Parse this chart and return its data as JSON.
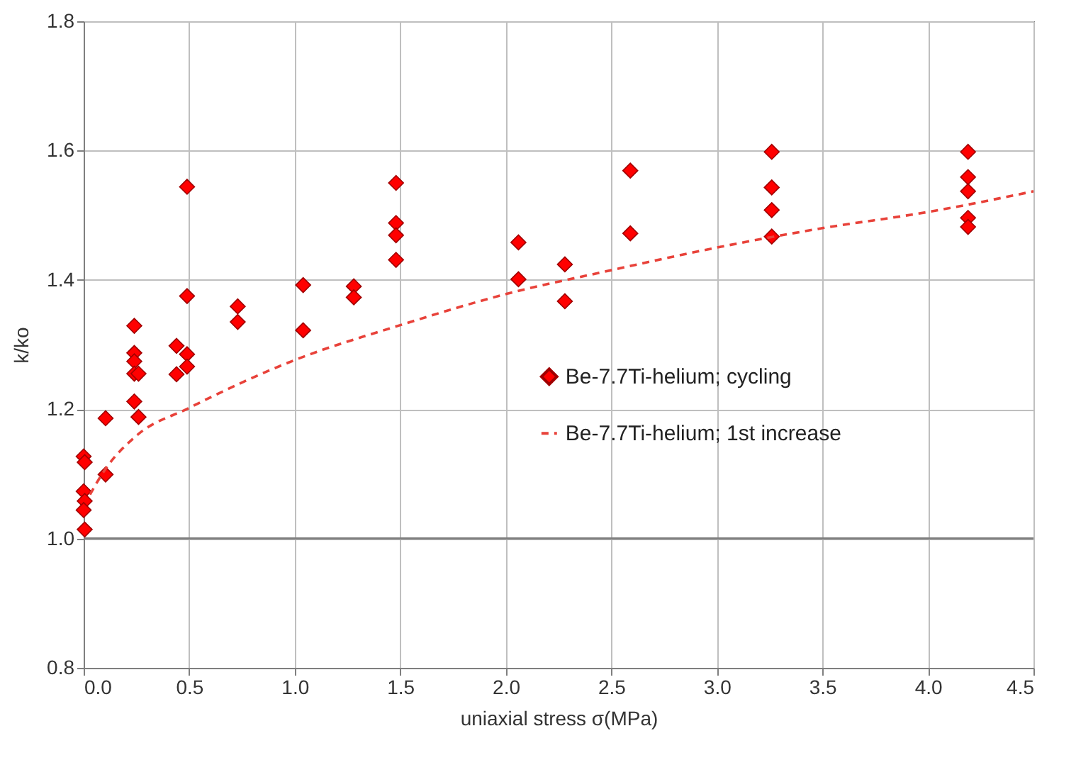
{
  "chart_data": {
    "type": "scatter",
    "xlabel": "uniaxial stress σ(MPa)",
    "ylabel": "k/ko",
    "xlim": [
      0,
      4.5
    ],
    "ylim": [
      0.8,
      1.8
    ],
    "xticks": [
      {
        "value": 0,
        "label": "0.0"
      },
      0.5,
      {
        "value": 1,
        "label": "1.0"
      },
      1.5,
      {
        "value": 2,
        "label": "2.0"
      },
      2.5,
      {
        "value": 3,
        "label": "3.0"
      },
      3.5,
      {
        "value": 4,
        "label": "4.0"
      },
      4.5
    ],
    "yticks": [
      0.8,
      {
        "value": 1,
        "label": "1.0"
      },
      1.2,
      1.4,
      1.6,
      1.8
    ],
    "grid": true,
    "legend": "right",
    "ref_lines": [
      {
        "axis": "y",
        "value": 1,
        "color": "#7f7f7f"
      }
    ],
    "series": [
      {
        "name": "Be-7.7Ti-helium; cycling",
        "marker": "diamond",
        "color": "#ff0000",
        "x": [
          0,
          0.005,
          0,
          0.005,
          0,
          0.005,
          0.104,
          0.104,
          0.24,
          0.24,
          0.24,
          0.24,
          0.24,
          0.26,
          0.26,
          0.44,
          0.44,
          0.49,
          0.49,
          0.49,
          0.49,
          0.73,
          0.73,
          1.04,
          1.04,
          1.28,
          1.28,
          1.48,
          1.48,
          1.48,
          1.48,
          2.06,
          2.06,
          2.28,
          2.28,
          2.59,
          2.59,
          3.26,
          3.26,
          3.26,
          3.26,
          4.19,
          4.19,
          4.19,
          4.19,
          4.19
        ],
        "values": [
          1.127,
          1.118,
          1.073,
          1.058,
          1.044,
          1.014,
          1.186,
          1.099,
          1.329,
          1.287,
          1.274,
          1.255,
          1.212,
          1.188,
          1.255,
          1.298,
          1.254,
          1.544,
          1.375,
          1.285,
          1.266,
          1.359,
          1.335,
          1.392,
          1.322,
          1.39,
          1.373,
          1.55,
          1.488,
          1.469,
          1.431,
          1.458,
          1.401,
          1.424,
          1.367,
          1.569,
          1.472,
          1.598,
          1.543,
          1.508,
          1.467,
          1.598,
          1.559,
          1.537,
          1.496,
          1.482
        ]
      },
      {
        "name": "Be-7.7Ti-helium;  1st increase",
        "type": "line",
        "line_style": "dashed",
        "color": "#e8423a",
        "x": [
          0.03,
          0.1,
          0.25,
          0.5,
          1.0,
          1.5,
          2.0,
          2.5,
          3.0,
          3.5,
          4.0,
          4.5
        ],
        "values": [
          1.068,
          1.106,
          1.159,
          1.202,
          1.276,
          1.33,
          1.378,
          1.415,
          1.45,
          1.48,
          1.505,
          1.537
        ]
      }
    ]
  }
}
